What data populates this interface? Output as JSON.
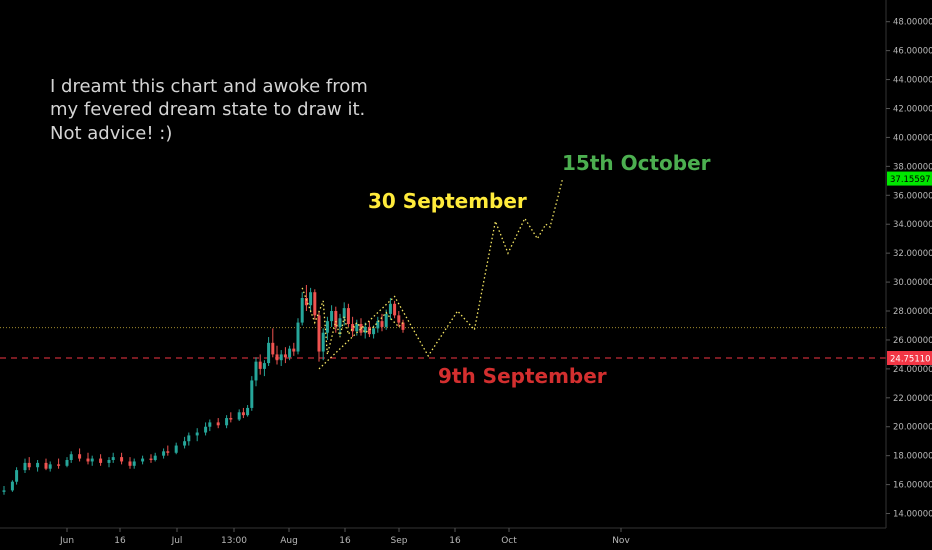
{
  "chart_data": {
    "type": "candlestick",
    "note_lines": [
      "I dreamt this chart and awoke from",
      "my fevered dream state to draw it.",
      "Not advice! :)"
    ],
    "annotations": [
      {
        "text": "30 September",
        "color": "#ffeb3b"
      },
      {
        "text": "15th October",
        "color": "#4caf50"
      },
      {
        "text": "9th September",
        "color": "#d32f2f"
      }
    ],
    "price_axis": {
      "ylim": [
        13,
        49.5
      ],
      "ticks": [
        "14.00000",
        "16.00000",
        "18.00000",
        "20.00000",
        "22.00000",
        "24.00000",
        "26.00000",
        "28.00000",
        "30.00000",
        "32.00000",
        "34.00000",
        "36.00000",
        "38.00000",
        "40.00000",
        "42.00000",
        "44.00000",
        "46.00000",
        "48.00000"
      ],
      "current_price_label": "37.15597",
      "current_price_color": "#00e600",
      "level_label": "24.75110",
      "level_color": "#f23645"
    },
    "time_axis": {
      "ticks": [
        "Jun",
        "16",
        "Jul",
        "13:00",
        "Aug",
        "16",
        "Sep",
        "16",
        "Oct",
        "Nov"
      ]
    },
    "horizontal_levels": [
      {
        "value": 26.85,
        "style": "dotted",
        "color": "#a08a2e"
      },
      {
        "value": 24.75,
        "style": "dashed",
        "color": "#f23645"
      }
    ],
    "candles": [
      {
        "d": 0,
        "o": 15.5,
        "h": 15.9,
        "l": 15.3,
        "c": 15.6
      },
      {
        "d": 2,
        "o": 15.6,
        "h": 16.3,
        "l": 15.5,
        "c": 16.2
      },
      {
        "d": 3,
        "o": 16.2,
        "h": 17.2,
        "l": 16.0,
        "c": 17.0
      },
      {
        "d": 5,
        "o": 17.0,
        "h": 17.8,
        "l": 16.8,
        "c": 17.5
      },
      {
        "d": 6,
        "o": 17.5,
        "h": 17.9,
        "l": 17.0,
        "c": 17.2
      },
      {
        "d": 8,
        "o": 17.2,
        "h": 17.7,
        "l": 16.9,
        "c": 17.5
      },
      {
        "d": 10,
        "o": 17.5,
        "h": 17.8,
        "l": 17.0,
        "c": 17.1
      },
      {
        "d": 11,
        "o": 17.1,
        "h": 17.6,
        "l": 16.9,
        "c": 17.4
      },
      {
        "d": 13,
        "o": 17.4,
        "h": 17.8,
        "l": 17.1,
        "c": 17.3
      },
      {
        "d": 15,
        "o": 17.3,
        "h": 17.9,
        "l": 17.2,
        "c": 17.7
      },
      {
        "d": 16,
        "o": 17.7,
        "h": 18.3,
        "l": 17.5,
        "c": 18.1
      },
      {
        "d": 18,
        "o": 18.1,
        "h": 18.5,
        "l": 17.6,
        "c": 17.8
      },
      {
        "d": 20,
        "o": 17.8,
        "h": 18.2,
        "l": 17.4,
        "c": 17.6
      },
      {
        "d": 21,
        "o": 17.6,
        "h": 18.0,
        "l": 17.3,
        "c": 17.8
      },
      {
        "d": 23,
        "o": 17.8,
        "h": 18.1,
        "l": 17.3,
        "c": 17.5
      },
      {
        "d": 25,
        "o": 17.5,
        "h": 17.9,
        "l": 17.2,
        "c": 17.7
      },
      {
        "d": 26,
        "o": 17.7,
        "h": 18.2,
        "l": 17.5,
        "c": 17.9
      },
      {
        "d": 28,
        "o": 17.9,
        "h": 18.2,
        "l": 17.4,
        "c": 17.6
      },
      {
        "d": 30,
        "o": 17.6,
        "h": 17.9,
        "l": 17.1,
        "c": 17.3
      },
      {
        "d": 31,
        "o": 17.3,
        "h": 17.8,
        "l": 17.1,
        "c": 17.6
      },
      {
        "d": 33,
        "o": 17.6,
        "h": 18.0,
        "l": 17.4,
        "c": 17.8
      },
      {
        "d": 35,
        "o": 17.8,
        "h": 18.1,
        "l": 17.5,
        "c": 17.7
      },
      {
        "d": 36,
        "o": 17.7,
        "h": 18.2,
        "l": 17.6,
        "c": 18.0
      },
      {
        "d": 38,
        "o": 18.0,
        "h": 18.5,
        "l": 17.8,
        "c": 18.3
      },
      {
        "d": 39,
        "o": 18.3,
        "h": 18.7,
        "l": 18.0,
        "c": 18.2
      },
      {
        "d": 41,
        "o": 18.2,
        "h": 18.9,
        "l": 18.1,
        "c": 18.7
      },
      {
        "d": 43,
        "o": 18.7,
        "h": 19.3,
        "l": 18.5,
        "c": 19.0
      },
      {
        "d": 44,
        "o": 19.0,
        "h": 19.6,
        "l": 18.7,
        "c": 19.4
      },
      {
        "d": 46,
        "o": 19.4,
        "h": 19.9,
        "l": 19.0,
        "c": 19.6
      },
      {
        "d": 48,
        "o": 19.6,
        "h": 20.3,
        "l": 19.4,
        "c": 20.0
      },
      {
        "d": 49,
        "o": 20.0,
        "h": 20.5,
        "l": 19.7,
        "c": 20.3
      },
      {
        "d": 51,
        "o": 20.3,
        "h": 20.6,
        "l": 19.9,
        "c": 20.1
      },
      {
        "d": 53,
        "o": 20.1,
        "h": 20.8,
        "l": 19.9,
        "c": 20.6
      },
      {
        "d": 54,
        "o": 20.6,
        "h": 21.0,
        "l": 20.3,
        "c": 20.5
      },
      {
        "d": 56,
        "o": 20.5,
        "h": 21.2,
        "l": 20.4,
        "c": 21.0
      },
      {
        "d": 57,
        "o": 21.0,
        "h": 21.3,
        "l": 20.6,
        "c": 20.8
      },
      {
        "d": 58,
        "o": 20.8,
        "h": 21.5,
        "l": 20.7,
        "c": 21.3
      },
      {
        "d": 59,
        "o": 21.3,
        "h": 23.5,
        "l": 21.1,
        "c": 23.2
      },
      {
        "d": 60,
        "o": 23.2,
        "h": 24.8,
        "l": 22.8,
        "c": 24.5
      },
      {
        "d": 61,
        "o": 24.5,
        "h": 25.0,
        "l": 23.6,
        "c": 24.0
      },
      {
        "d": 62,
        "o": 24.0,
        "h": 24.6,
        "l": 23.5,
        "c": 24.4
      },
      {
        "d": 63,
        "o": 24.4,
        "h": 26.2,
        "l": 24.2,
        "c": 25.8
      },
      {
        "d": 64,
        "o": 25.8,
        "h": 26.8,
        "l": 24.8,
        "c": 25.0
      },
      {
        "d": 65,
        "o": 25.0,
        "h": 25.6,
        "l": 24.3,
        "c": 24.6
      },
      {
        "d": 66,
        "o": 24.6,
        "h": 25.3,
        "l": 24.2,
        "c": 25.0
      },
      {
        "d": 67,
        "o": 25.0,
        "h": 25.5,
        "l": 24.4,
        "c": 24.8
      },
      {
        "d": 68,
        "o": 24.8,
        "h": 25.6,
        "l": 24.6,
        "c": 25.4
      },
      {
        "d": 69,
        "o": 25.4,
        "h": 25.8,
        "l": 24.9,
        "c": 25.2
      },
      {
        "d": 70,
        "o": 25.2,
        "h": 27.5,
        "l": 25.0,
        "c": 27.2
      },
      {
        "d": 71,
        "o": 27.2,
        "h": 29.3,
        "l": 27.0,
        "c": 28.9
      },
      {
        "d": 72,
        "o": 28.9,
        "h": 29.8,
        "l": 28.0,
        "c": 28.4
      },
      {
        "d": 73,
        "o": 28.4,
        "h": 29.6,
        "l": 27.9,
        "c": 29.3
      },
      {
        "d": 74,
        "o": 29.3,
        "h": 29.5,
        "l": 27.4,
        "c": 27.7
      },
      {
        "d": 75,
        "o": 27.7,
        "h": 28.0,
        "l": 24.5,
        "c": 25.2
      },
      {
        "d": 76,
        "o": 25.2,
        "h": 26.8,
        "l": 24.6,
        "c": 26.5
      },
      {
        "d": 77,
        "o": 26.5,
        "h": 27.6,
        "l": 26.0,
        "c": 27.3
      },
      {
        "d": 78,
        "o": 27.3,
        "h": 28.4,
        "l": 26.9,
        "c": 28.0
      },
      {
        "d": 79,
        "o": 28.0,
        "h": 28.3,
        "l": 26.5,
        "c": 26.9
      },
      {
        "d": 80,
        "o": 26.9,
        "h": 27.8,
        "l": 26.3,
        "c": 27.5
      },
      {
        "d": 81,
        "o": 27.5,
        "h": 28.6,
        "l": 27.0,
        "c": 28.2
      },
      {
        "d": 82,
        "o": 28.2,
        "h": 28.5,
        "l": 26.9,
        "c": 27.1
      },
      {
        "d": 83,
        "o": 27.1,
        "h": 27.6,
        "l": 26.2,
        "c": 26.6
      },
      {
        "d": 84,
        "o": 26.6,
        "h": 27.4,
        "l": 26.3,
        "c": 27.1
      },
      {
        "d": 85,
        "o": 27.1,
        "h": 27.5,
        "l": 26.3,
        "c": 26.5
      },
      {
        "d": 86,
        "o": 26.5,
        "h": 27.2,
        "l": 26.1,
        "c": 26.9
      },
      {
        "d": 87,
        "o": 26.9,
        "h": 27.3,
        "l": 26.2,
        "c": 26.4
      },
      {
        "d": 88,
        "o": 26.4,
        "h": 27.0,
        "l": 26.1,
        "c": 26.8
      },
      {
        "d": 89,
        "o": 26.8,
        "h": 27.6,
        "l": 26.5,
        "c": 27.3
      },
      {
        "d": 90,
        "o": 27.3,
        "h": 27.8,
        "l": 26.6,
        "c": 26.9
      },
      {
        "d": 91,
        "o": 26.9,
        "h": 28.1,
        "l": 26.7,
        "c": 27.8
      },
      {
        "d": 92,
        "o": 27.8,
        "h": 28.9,
        "l": 27.4,
        "c": 28.5
      },
      {
        "d": 93,
        "o": 28.5,
        "h": 28.7,
        "l": 27.5,
        "c": 27.7
      },
      {
        "d": 94,
        "o": 27.7,
        "h": 28.0,
        "l": 26.9,
        "c": 27.2
      },
      {
        "d": 95,
        "o": 27.2,
        "h": 27.4,
        "l": 26.5,
        "c": 26.7
      }
    ],
    "forecast_paths": [
      {
        "color": "#f5e663",
        "points": [
          [
            75,
            24.0
          ],
          [
            93,
            29.0
          ],
          [
            101,
            24.9
          ],
          [
            108,
            28.0
          ],
          [
            112,
            26.7
          ],
          [
            117,
            34.2
          ],
          [
            120,
            32.0
          ],
          [
            124,
            34.4
          ],
          [
            127,
            33.0
          ],
          [
            129,
            34.0
          ],
          [
            130,
            33.8
          ],
          [
            132,
            36.0
          ],
          [
            133,
            37.15
          ]
        ]
      },
      {
        "color": "#f5e663",
        "points": [
          [
            71,
            29.6
          ],
          [
            74,
            27.2
          ],
          [
            76,
            28.7
          ],
          [
            77,
            25.0
          ],
          [
            79,
            27.3
          ],
          [
            80,
            26.2
          ],
          [
            81,
            27.6
          ],
          [
            82,
            26.4
          ],
          [
            84,
            27.2
          ],
          [
            86,
            26.5
          ],
          [
            88,
            26.9
          ],
          [
            91,
            27.9
          ],
          [
            92,
            27.5
          ],
          [
            94,
            26.9
          ],
          [
            95,
            27.2
          ]
        ]
      }
    ]
  }
}
